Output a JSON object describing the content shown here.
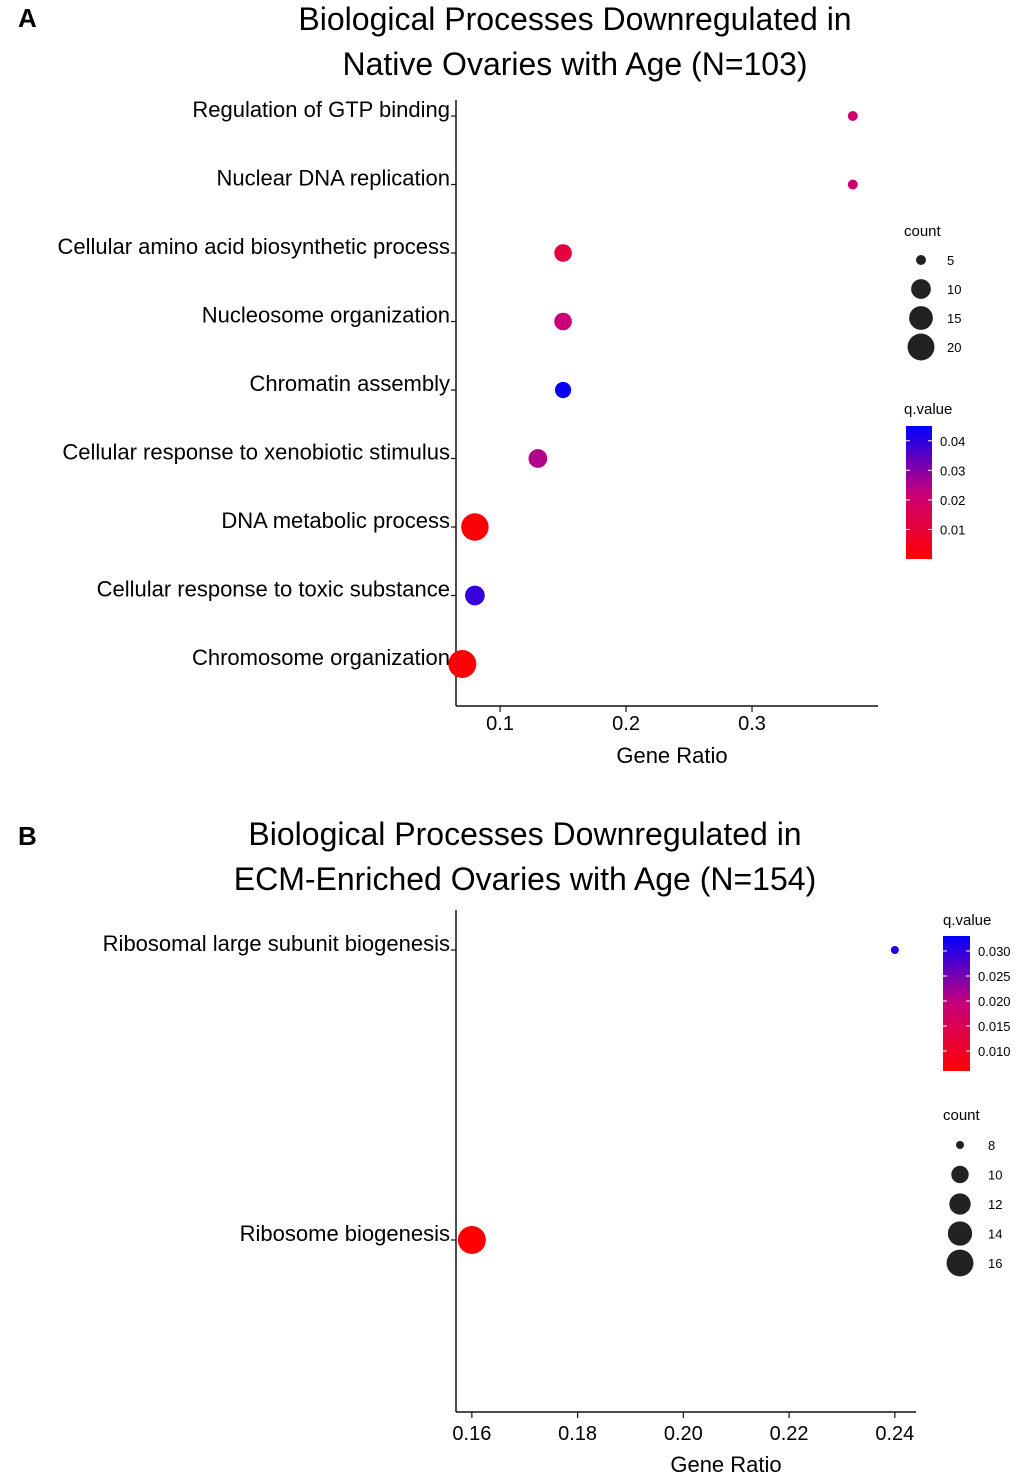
{
  "chart_data": [
    {
      "panel_label": "A",
      "type": "scatter",
      "title_lines": [
        "Biological Processes Downregulated in",
        "Native Ovaries with Age (N=103)"
      ],
      "xlabel": "Gene Ratio",
      "ylabel": "",
      "xlim": [
        0.065,
        0.4
      ],
      "xticks": [
        0.1,
        0.2,
        0.3
      ],
      "xtick_labels": [
        "0.1",
        "0.2",
        "0.3"
      ],
      "categories": [
        "Regulation of GTP binding",
        "Nuclear DNA replication",
        "Cellular amino acid biosynthetic process",
        "Nucleosome organization",
        "Chromatin assembly",
        "Cellular response to xenobiotic stimulus",
        "DNA metabolic process",
        "Cellular response to toxic substance",
        "Chromosome organization"
      ],
      "points": [
        {
          "term": "Regulation of GTP binding",
          "gene_ratio": 0.38,
          "count": 3,
          "q_value": 0.02
        },
        {
          "term": "Nuclear DNA replication",
          "gene_ratio": 0.38,
          "count": 3,
          "q_value": 0.02
        },
        {
          "term": "Cellular amino acid biosynthetic process",
          "gene_ratio": 0.15,
          "count": 8,
          "q_value": 0.012
        },
        {
          "term": "Nucleosome organization",
          "gene_ratio": 0.15,
          "count": 8,
          "q_value": 0.022
        },
        {
          "term": "Chromatin assembly",
          "gene_ratio": 0.15,
          "count": 7,
          "q_value": 0.044
        },
        {
          "term": "Cellular response to xenobiotic stimulus",
          "gene_ratio": 0.13,
          "count": 9,
          "q_value": 0.025
        },
        {
          "term": "DNA metabolic process",
          "gene_ratio": 0.08,
          "count": 21,
          "q_value": 0.001
        },
        {
          "term": "Cellular response to toxic substance",
          "gene_ratio": 0.08,
          "count": 10,
          "q_value": 0.039
        },
        {
          "term": "Chromosome organization",
          "gene_ratio": 0.07,
          "count": 22,
          "q_value": 0.001
        }
      ],
      "size_legend": {
        "title": "count",
        "values": [
          5,
          10,
          15,
          20
        ],
        "labels": [
          "5",
          "10",
          "15",
          "20"
        ]
      },
      "color_legend": {
        "title": "q.value",
        "min": 0.0,
        "max": 0.045,
        "ticks": [
          0.04,
          0.03,
          0.02,
          0.01
        ],
        "labels": [
          "0.04",
          "0.03",
          "0.02",
          "0.01"
        ],
        "low_color": "#FF0000",
        "high_color": "#0000FF"
      }
    },
    {
      "panel_label": "B",
      "type": "scatter",
      "title_lines": [
        "Biological Processes Downregulated in",
        "ECM-Enriched Ovaries with Age (N=154)"
      ],
      "xlabel": "Gene Ratio",
      "ylabel": "",
      "xlim": [
        0.157,
        0.244
      ],
      "xticks": [
        0.16,
        0.18,
        0.2,
        0.22,
        0.24
      ],
      "xtick_labels": [
        "0.16",
        "0.18",
        "0.20",
        "0.22",
        "0.24"
      ],
      "categories": [
        "Ribosomal large subunit biogenesis",
        "Ribosome biogenesis"
      ],
      "points": [
        {
          "term": "Ribosomal large subunit biogenesis",
          "gene_ratio": 0.24,
          "count": 8,
          "q_value": 0.031
        },
        {
          "term": "Ribosome biogenesis",
          "gene_ratio": 0.16,
          "count": 17,
          "q_value": 0.006
        }
      ],
      "size_legend": {
        "title": "count",
        "values": [
          8,
          10,
          12,
          14,
          16
        ],
        "labels": [
          "8",
          "10",
          "12",
          "14",
          "16"
        ]
      },
      "color_legend": {
        "title": "q.value",
        "min": 0.006,
        "max": 0.033,
        "ticks": [
          0.03,
          0.025,
          0.02,
          0.015,
          0.01
        ],
        "labels": [
          "0.030",
          "0.025",
          "0.020",
          "0.015",
          "0.010"
        ],
        "low_color": "#FF0000",
        "high_color": "#0000FF"
      }
    }
  ]
}
